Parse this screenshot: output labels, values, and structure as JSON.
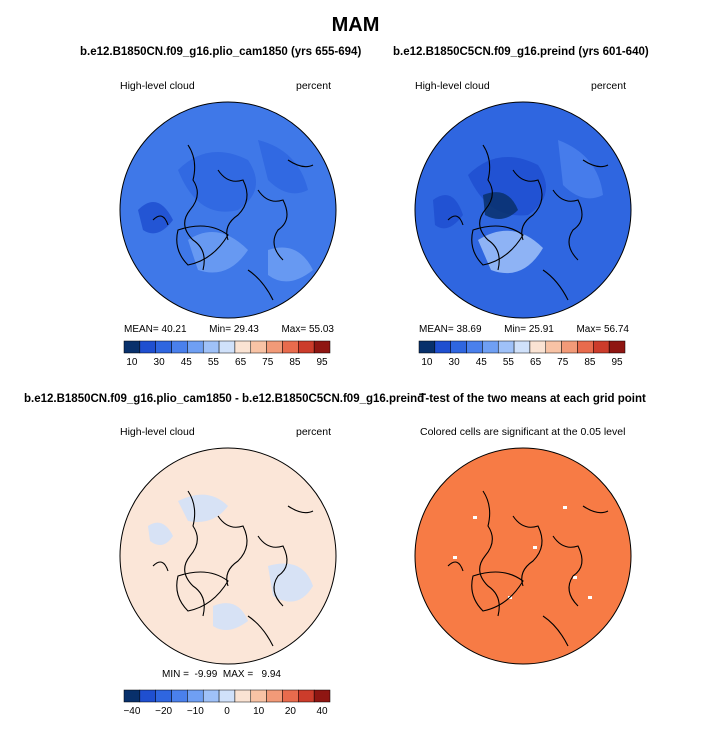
{
  "figure": {
    "title": "MAM"
  },
  "colors": {
    "scale": [
      "#08306b",
      "#1f4fd0",
      "#2f66e0",
      "#4a80ec",
      "#6f9ff3",
      "#9fc1f8",
      "#d0e1fa",
      "#fae3d3",
      "#f8c3a5",
      "#f29a78",
      "#e86b4d",
      "#cc3c2b",
      "#8f1612"
    ],
    "fill_top_left": "#3f78e8",
    "fill_top_right": "#2f66e0",
    "fill_diff": "#fbe6d8",
    "fill_ttest": "#f77b45",
    "coast": "#000000"
  },
  "chart_data": [
    {
      "type": "heatmap",
      "projection": "north-polar-stereographic",
      "title": "b.e12.B1850CN.f09_g16.plio_cam1850 (yrs 655-694)",
      "left_label": "High-level cloud",
      "right_label": "percent",
      "stats": {
        "mean_label": "MEAN=",
        "mean": "40.21",
        "min_label": "Min=",
        "min": "29.43",
        "max_label": "Max=",
        "max": "55.03"
      },
      "colorbar": {
        "ticks": [
          "10",
          "30",
          "45",
          "55",
          "65",
          "75",
          "85",
          "95"
        ],
        "boundaries": [
          10,
          20,
          30,
          40,
          45,
          50,
          55,
          60,
          65,
          70,
          75,
          80,
          85,
          90,
          95
        ]
      }
    },
    {
      "type": "heatmap",
      "projection": "north-polar-stereographic",
      "title": "b.e12.B1850C5CN.f09_g16.preind (yrs 601-640)",
      "left_label": "High-level cloud",
      "right_label": "percent",
      "stats": {
        "mean_label": "MEAN=",
        "mean": "38.69",
        "min_label": "Min=",
        "min": "25.91",
        "max_label": "Max=",
        "max": "56.74"
      },
      "colorbar": {
        "ticks": [
          "10",
          "30",
          "45",
          "55",
          "65",
          "75",
          "85",
          "95"
        ],
        "boundaries": [
          10,
          20,
          30,
          40,
          45,
          50,
          55,
          60,
          65,
          70,
          75,
          80,
          85,
          90,
          95
        ]
      }
    },
    {
      "type": "heatmap",
      "projection": "north-polar-stereographic",
      "title": "b.e12.B1850CN.f09_g16.plio_cam1850 - b.e12.B1850C5CN.f09_g16.preind",
      "left_label": "High-level cloud",
      "right_label": "percent",
      "stats": {
        "min_label": "MIN =",
        "min": "-9.99",
        "max_label": "MAX =",
        "max": "9.94"
      },
      "colorbar": {
        "ticks": [
          "−40",
          "−20",
          "−10",
          "0",
          "10",
          "20",
          "40"
        ],
        "boundaries": [
          -50,
          -40,
          -30,
          -20,
          -15,
          -10,
          -5,
          0,
          5,
          10,
          15,
          20,
          30,
          40,
          50
        ]
      }
    },
    {
      "type": "heatmap",
      "projection": "north-polar-stereographic",
      "title": "T-test of the two means at each grid point",
      "subtitle": "Colored cells are significant at the 0.05 level"
    }
  ]
}
